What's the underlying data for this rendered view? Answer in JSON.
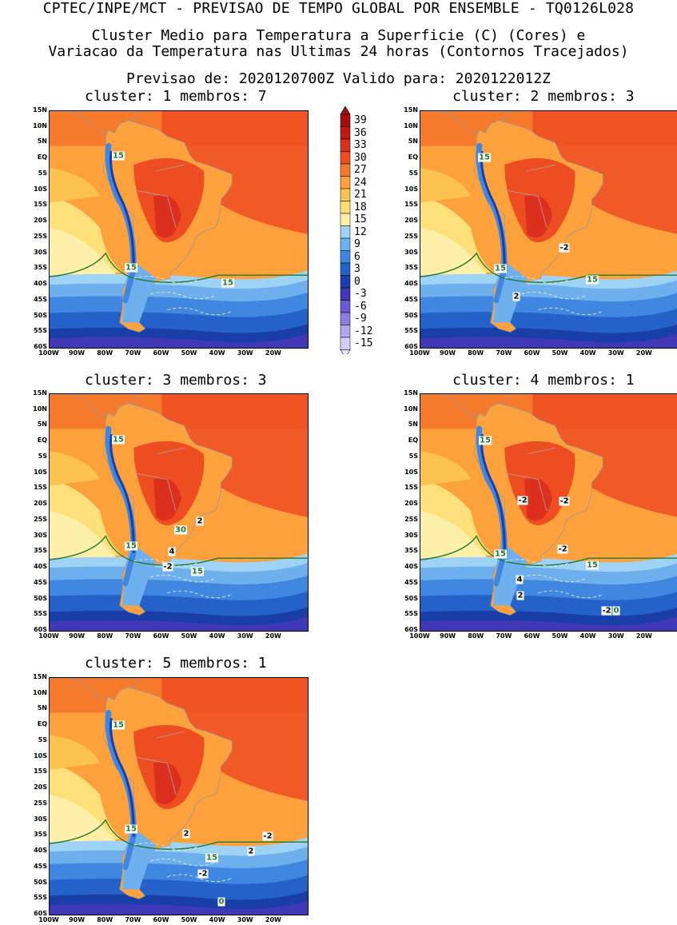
{
  "header": {
    "line1": "CPTEC/INPE/MCT - PREVISAO DE TEMPO GLOBAL POR ENSEMBLE - TQ0126L028",
    "line2": "Cluster Medio para Temperatura a Superficie (C) (Cores) e",
    "line3": "Variacao da Temperatura nas Ultimas 24 horas (Contornos Tracejados)",
    "line4": "Previsao de: 2020120700Z   Valido para: 2020122012Z"
  },
  "panels": [
    {
      "title": "cluster: 1   membros: 7",
      "labels": [
        "15",
        "15",
        "15"
      ]
    },
    {
      "title": "cluster: 2   membros: 3",
      "labels": [
        "15",
        "15",
        "15",
        "-2",
        "2"
      ]
    },
    {
      "title": "cluster: 3   membros: 3",
      "labels": [
        "15",
        "15",
        "15",
        "30",
        "2",
        "4",
        "-2"
      ]
    },
    {
      "title": "cluster: 4   membros: 1",
      "labels": [
        "15",
        "15",
        "15",
        "-2",
        "-2",
        "-2",
        "4",
        "2",
        "-2",
        "0"
      ]
    },
    {
      "title": "cluster: 5   membros: 1",
      "labels": [
        "15",
        "15",
        "15",
        "2",
        "-2",
        "-2",
        "2",
        "0"
      ]
    }
  ],
  "axes": {
    "lat_ticks": [
      "15N",
      "10N",
      "5N",
      "EQ",
      "5S",
      "10S",
      "15S",
      "20S",
      "25S",
      "30S",
      "35S",
      "40S",
      "45S",
      "50S",
      "55S",
      "60S"
    ],
    "lon_ticks": [
      "100W",
      "90W",
      "80W",
      "70W",
      "60W",
      "50W",
      "40W",
      "30W",
      "20W"
    ]
  },
  "colorbar": {
    "labels": [
      "39",
      "36",
      "33",
      "30",
      "27",
      "24",
      "21",
      "18",
      "15",
      "12",
      "9",
      "6",
      "3",
      "0",
      "-3",
      "-6",
      "-9",
      "-12",
      "-15"
    ],
    "colors": [
      "#a01010",
      "#c01818",
      "#dc2f1e",
      "#ee4d22",
      "#f57a2c",
      "#fca13c",
      "#fcc24f",
      "#fde07a",
      "#fef0a8",
      "#9fd3f5",
      "#6eb0ee",
      "#3f87e0",
      "#2461c8",
      "#1a3ea8",
      "#4138b8",
      "#6a5ad0",
      "#8a7ee0",
      "#b0a6ee",
      "#d4ceff"
    ]
  }
}
